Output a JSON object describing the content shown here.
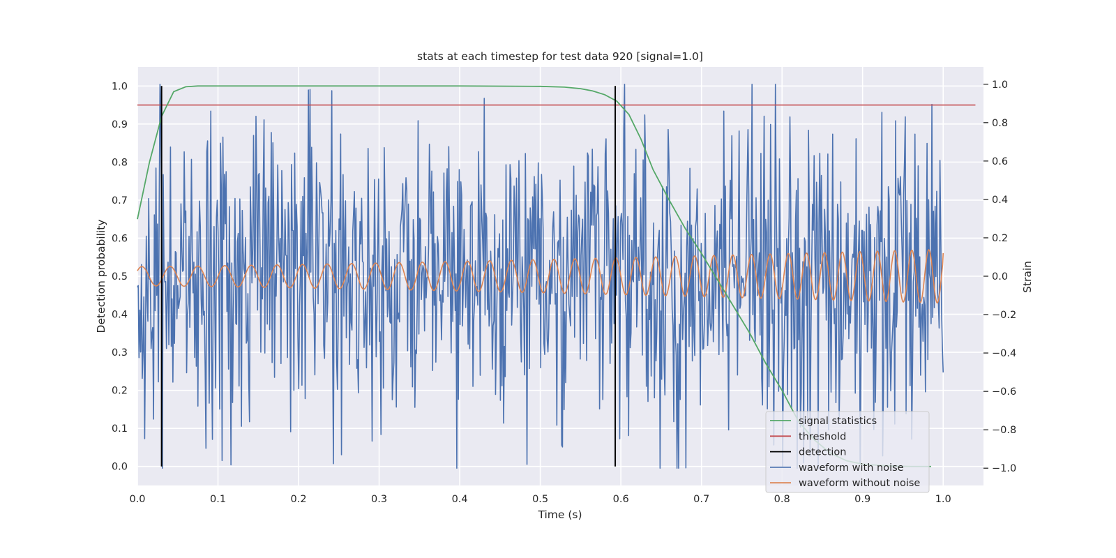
{
  "chart_data": {
    "type": "line",
    "title": "stats at each timestep for test data 920 [signal=1.0]",
    "xlabel": "Time (s)",
    "ylabel": "Detection probability",
    "y2label": "Strain",
    "xlim": [
      0.0,
      1.05
    ],
    "ylim": [
      -0.05,
      1.05
    ],
    "y2lim": [
      -1.09,
      1.09
    ],
    "grid": true,
    "legend_position": "lower right",
    "x_ticks": [
      "0.0",
      "0.1",
      "0.2",
      "0.3",
      "0.4",
      "0.5",
      "0.6",
      "0.7",
      "0.8",
      "0.9",
      "1.0"
    ],
    "y_ticks": [
      "0.0",
      "0.1",
      "0.2",
      "0.3",
      "0.4",
      "0.5",
      "0.6",
      "0.7",
      "0.8",
      "0.9",
      "1.0"
    ],
    "y2_ticks": [
      "−1.0",
      "−0.8",
      "−0.6",
      "−0.4",
      "−0.2",
      "0.0",
      "0.2",
      "0.4",
      "0.6",
      "0.8",
      "1.0"
    ],
    "colors": {
      "signal_statistics": "#55a868",
      "threshold": "#c44e52",
      "detection": "#000000",
      "waveform_with_noise": "#4c72b0",
      "waveform_without_noise": "#dd8452",
      "plot_background": "#eaeaf2",
      "grid": "#ffffff"
    },
    "series": [
      {
        "name": "signal statistics",
        "axis": "left",
        "x": [
          0.0,
          0.015,
          0.03,
          0.045,
          0.06,
          0.075,
          0.1,
          0.2,
          0.3,
          0.4,
          0.5,
          0.53,
          0.55,
          0.565,
          0.58,
          0.595,
          0.61,
          0.625,
          0.64,
          0.66,
          0.68,
          0.7,
          0.72,
          0.74,
          0.76,
          0.78,
          0.8,
          0.82,
          0.84,
          0.86,
          0.88,
          0.9,
          0.92,
          0.94,
          0.96,
          0.985
        ],
        "values": [
          0.65,
          0.8,
          0.92,
          0.985,
          0.998,
          1.0,
          1.0,
          1.0,
          1.0,
          1.0,
          0.999,
          0.997,
          0.993,
          0.987,
          0.977,
          0.96,
          0.925,
          0.86,
          0.78,
          0.7,
          0.625,
          0.56,
          0.49,
          0.42,
          0.35,
          0.27,
          0.2,
          0.12,
          0.07,
          0.035,
          0.015,
          0.006,
          0.003,
          0.001,
          0.0,
          0.0
        ]
      },
      {
        "name": "threshold",
        "axis": "left",
        "x": [
          0.0,
          1.04
        ],
        "values": [
          0.95,
          0.95
        ]
      },
      {
        "name": "detection",
        "axis": "left",
        "segments": [
          {
            "x": 0.03,
            "y": [
              0.0,
              1.0
            ]
          },
          {
            "x": 0.593,
            "y": [
              0.0,
              1.0
            ]
          }
        ]
      },
      {
        "name": "waveform with noise",
        "axis": "right",
        "x_start": 0.0,
        "x_end": 1.0,
        "approx_sample_count": 1000,
        "approx_std": 0.38,
        "range": [
          -1.0,
          1.0
        ],
        "notable_points": [
          {
            "x": 0.028,
            "y": 1.0
          },
          {
            "x": 0.031,
            "y": -1.0
          },
          {
            "x": 0.091,
            "y": 0.86
          },
          {
            "x": 0.093,
            "y": -0.85
          },
          {
            "x": 0.19,
            "y": -0.81
          },
          {
            "x": 0.212,
            "y": 0.97
          },
          {
            "x": 0.253,
            "y": -0.93
          },
          {
            "x": 0.348,
            "y": 0.81
          },
          {
            "x": 0.483,
            "y": -0.98
          },
          {
            "x": 0.61,
            "y": -0.83
          },
          {
            "x": 0.63,
            "y": 0.84
          },
          {
            "x": 0.728,
            "y": 0.86
          },
          {
            "x": 0.81,
            "y": 0.83
          },
          {
            "x": 0.94,
            "y": -0.77
          },
          {
            "x": 0.965,
            "y": 0.74
          }
        ]
      },
      {
        "name": "waveform without noise",
        "axis": "right",
        "description_model": "chirp",
        "x_start": 0.0,
        "x_end": 1.0,
        "amplitude_start": 0.05,
        "amplitude_end": 0.14,
        "frequency_start_hz": 28,
        "frequency_end_hz": 48,
        "end_value": 0.12
      }
    ],
    "legend": [
      "signal statistics",
      "threshold",
      "detection",
      "waveform with noise",
      "waveform without noise"
    ]
  }
}
